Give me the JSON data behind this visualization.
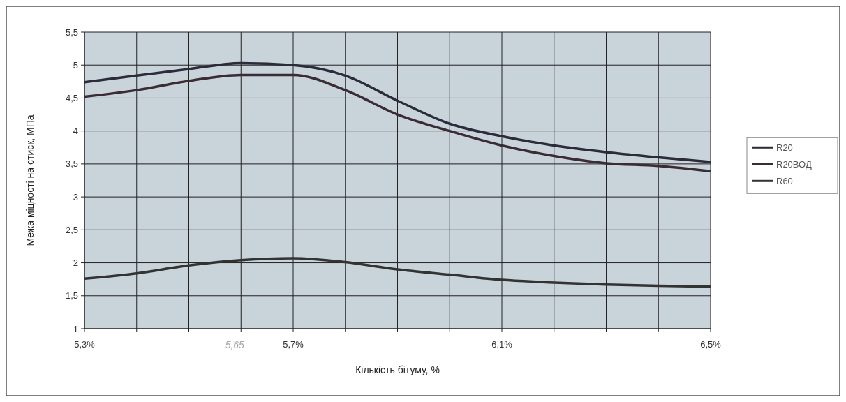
{
  "chart_data": {
    "type": "line",
    "xlabel": "Кількість бітуму, %",
    "ylabel": "Межа міцності на стиск, МПа",
    "x": [
      5.3,
      5.4,
      5.5,
      5.6,
      5.7,
      5.8,
      5.9,
      6.0,
      6.1,
      6.2,
      6.3,
      6.4,
      6.5
    ],
    "series": [
      {
        "name": "R20",
        "color": "#2b2b3a",
        "values": [
          4.74,
          4.84,
          4.94,
          5.03,
          5.0,
          4.84,
          4.46,
          4.11,
          3.92,
          3.78,
          3.68,
          3.6,
          3.53
        ]
      },
      {
        "name": "R20ВОД",
        "color": "#3a2b35",
        "values": [
          4.52,
          4.62,
          4.76,
          4.85,
          4.85,
          4.62,
          4.25,
          4.0,
          3.78,
          3.62,
          3.51,
          3.47,
          3.39
        ]
      },
      {
        "name": "R60",
        "color": "#333333",
        "values": [
          1.76,
          1.84,
          1.96,
          2.04,
          2.07,
          2.01,
          1.9,
          1.82,
          1.74,
          1.7,
          1.67,
          1.65,
          1.64
        ]
      }
    ],
    "xlim": [
      5.3,
      6.5
    ],
    "xticks": [
      {
        "value": 5.3,
        "label": "5,3%"
      },
      {
        "value": 5.4,
        "label": null
      },
      {
        "value": 5.5,
        "label": null
      },
      {
        "value": 5.6,
        "label": null
      },
      {
        "value": 5.7,
        "label": "5,7%"
      },
      {
        "value": 5.8,
        "label": null
      },
      {
        "value": 5.9,
        "label": null
      },
      {
        "value": 6.0,
        "label": null
      },
      {
        "value": 6.1,
        "label": "6,1%"
      },
      {
        "value": 6.2,
        "label": null
      },
      {
        "value": 6.3,
        "label": null
      },
      {
        "value": 6.4,
        "label": null
      },
      {
        "value": 6.5,
        "label": "6,5%"
      }
    ],
    "ylim": [
      1,
      5.5
    ],
    "yticks": [
      {
        "value": 1,
        "label": "1"
      },
      {
        "value": 1.5,
        "label": "1,5"
      },
      {
        "value": 2,
        "label": "2"
      },
      {
        "value": 2.5,
        "label": "2,5"
      },
      {
        "value": 3,
        "label": "3"
      },
      {
        "value": 3.5,
        "label": "3,5"
      },
      {
        "value": 4,
        "label": "4"
      },
      {
        "value": 4.5,
        "label": "4,5"
      },
      {
        "value": 5,
        "label": "5"
      },
      {
        "value": 5.5,
        "label": "5,5"
      }
    ],
    "grid": true,
    "legend": "right",
    "line_style": "solid",
    "marker": "none",
    "annotations": [
      "5,65"
    ]
  }
}
